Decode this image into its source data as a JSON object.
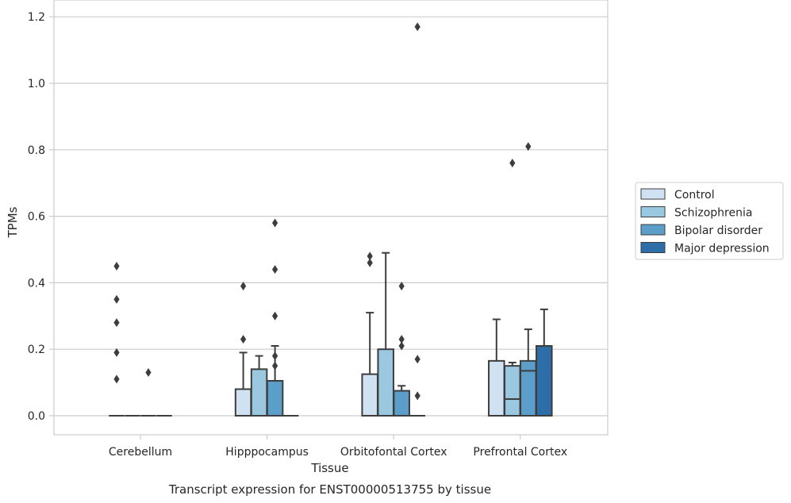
{
  "chart_data": {
    "type": "box",
    "title": "Transcript expression for ENST00000513755 by tissue",
    "xlabel": "Tissue",
    "ylabel": "TPMs",
    "ylim": [
      -0.058,
      1.232
    ],
    "yticks": [
      0.0,
      0.2,
      0.4,
      0.6,
      0.8,
      1.0,
      1.2
    ],
    "ytick_labels": [
      "0.0",
      "0.2",
      "0.4",
      "0.6",
      "0.8",
      "1.0",
      "1.2"
    ],
    "grid": "horizontal",
    "legend_position": "right",
    "categories": [
      "Cerebellum",
      "Hipppocampus",
      "Orbitofontal Cortex",
      "Prefrontal Cortex"
    ],
    "series": [
      {
        "name": "Control",
        "color": "#d0e1f2",
        "boxes": [
          {
            "q1": 0.0,
            "median": 0.0,
            "q3": 0.0,
            "whisker_low": 0.0,
            "whisker_high": 0.0,
            "outliers": [
              0.11,
              0.19,
              0.28,
              0.35,
              0.45
            ]
          },
          {
            "q1": 0.0,
            "median": 0.0,
            "q3": 0.08,
            "whisker_low": 0.0,
            "whisker_high": 0.19,
            "outliers": [
              0.23,
              0.39
            ]
          },
          {
            "q1": 0.0,
            "median": 0.0,
            "q3": 0.125,
            "whisker_low": 0.0,
            "whisker_high": 0.31,
            "outliers": [
              0.46,
              0.48
            ]
          },
          {
            "q1": 0.0,
            "median": 0.0,
            "q3": 0.165,
            "whisker_low": 0.0,
            "whisker_high": 0.29,
            "outliers": []
          }
        ]
      },
      {
        "name": "Schizophrenia",
        "color": "#9ac8e0",
        "boxes": [
          {
            "q1": 0.0,
            "median": 0.0,
            "q3": 0.0,
            "whisker_low": 0.0,
            "whisker_high": 0.0,
            "outliers": []
          },
          {
            "q1": 0.0,
            "median": 0.0,
            "q3": 0.14,
            "whisker_low": 0.0,
            "whisker_high": 0.18,
            "outliers": []
          },
          {
            "q1": 0.0,
            "median": 0.0,
            "q3": 0.2,
            "whisker_low": 0.0,
            "whisker_high": 0.49,
            "outliers": []
          },
          {
            "q1": 0.0,
            "median": 0.05,
            "q3": 0.15,
            "whisker_low": 0.0,
            "whisker_high": 0.16,
            "outliers": [
              0.76
            ]
          }
        ]
      },
      {
        "name": "Bipolar disorder",
        "color": "#5a9ec9",
        "boxes": [
          {
            "q1": 0.0,
            "median": 0.0,
            "q3": 0.0,
            "whisker_low": 0.0,
            "whisker_high": 0.0,
            "outliers": [
              0.13
            ]
          },
          {
            "q1": 0.0,
            "median": 0.0,
            "q3": 0.105,
            "whisker_low": 0.0,
            "whisker_high": 0.21,
            "outliers": [
              0.15,
              0.18,
              0.3,
              0.44,
              0.58
            ]
          },
          {
            "q1": 0.0,
            "median": 0.0,
            "q3": 0.075,
            "whisker_low": 0.0,
            "whisker_high": 0.09,
            "outliers": [
              0.21,
              0.23,
              0.39
            ]
          },
          {
            "q1": 0.0,
            "median": 0.135,
            "q3": 0.165,
            "whisker_low": 0.0,
            "whisker_high": 0.26,
            "outliers": [
              0.81
            ]
          }
        ]
      },
      {
        "name": "Major depression",
        "color": "#2d6ea9",
        "boxes": [
          {
            "q1": 0.0,
            "median": 0.0,
            "q3": 0.0,
            "whisker_low": 0.0,
            "whisker_high": 0.0,
            "outliers": []
          },
          {
            "q1": 0.0,
            "median": 0.0,
            "q3": 0.0,
            "whisker_low": 0.0,
            "whisker_high": 0.0,
            "outliers": []
          },
          {
            "q1": 0.0,
            "median": 0.0,
            "q3": 0.0,
            "whisker_low": 0.0,
            "whisker_high": 0.0,
            "outliers": [
              0.06,
              0.17,
              1.17
            ]
          },
          {
            "q1": 0.0,
            "median": 0.0,
            "q3": 0.21,
            "whisker_low": 0.0,
            "whisker_high": 0.32,
            "outliers": []
          }
        ]
      }
    ]
  }
}
